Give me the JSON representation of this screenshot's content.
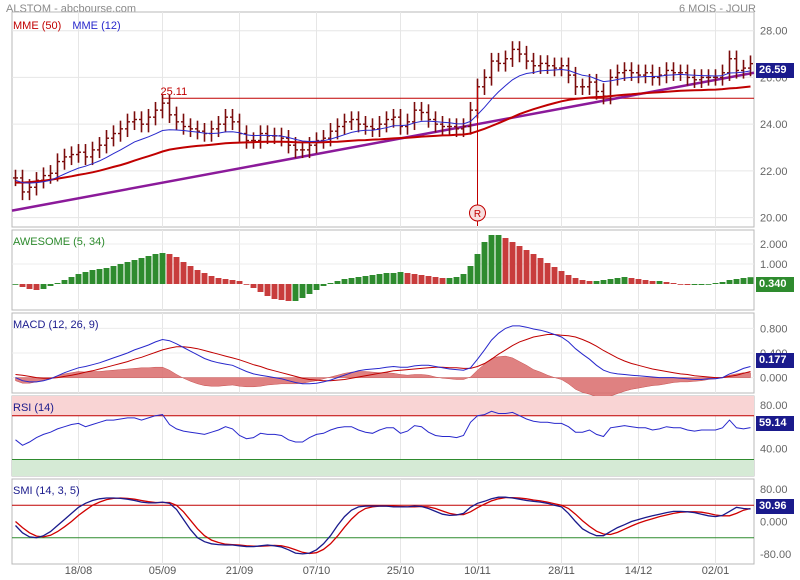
{
  "header": {
    "source": "ALSTOM - abcbourse.com",
    "period": "6 MOIS - JOUR"
  },
  "colors": {
    "price_bar": "#7a0b0b",
    "mme50": "#c00000",
    "mme12": "#2828cc",
    "trendline": "#8b1a9a",
    "resistance": "#c00000",
    "ao_up": "#2e8b2e",
    "ao_down": "#c83c3c",
    "rsi_over": "#f9d4d4",
    "rsi_under": "#d5ead5",
    "badge_blue": "#1a1a8c",
    "badge_green": "#2e8b2e"
  },
  "chart_data": [
    {
      "type": "ohlc",
      "panel": "price",
      "legend": [
        {
          "name": "MME (50)",
          "color": "#c00000"
        },
        {
          "name": "MME (12)",
          "color": "#2828cc"
        }
      ],
      "y_ticks": [
        "28.00",
        "26.00",
        "24.00",
        "22.00",
        "20.00"
      ],
      "ylim": [
        19.6,
        28.8
      ],
      "x_tick_labels": [
        "18/08",
        "05/09",
        "21/09",
        "07/10",
        "25/10",
        "10/11",
        "28/11",
        "14/12",
        "02/01"
      ],
      "x_tick_index": [
        9,
        21,
        32,
        43,
        55,
        66,
        78,
        89,
        100
      ],
      "last_value": "26.59",
      "resistance": {
        "label": "25.11",
        "value": 25.11
      },
      "marker": {
        "label": "R",
        "index": 66
      },
      "close": [
        21.7,
        21.1,
        21.3,
        21.6,
        21.8,
        21.9,
        22.4,
        22.6,
        22.7,
        22.8,
        22.6,
        22.9,
        23.1,
        23.4,
        23.6,
        23.8,
        24.1,
        24.2,
        24.0,
        24.3,
        24.6,
        24.9,
        24.4,
        24.1,
        23.9,
        23.8,
        23.7,
        23.6,
        23.8,
        24.0,
        24.3,
        24.1,
        23.6,
        23.3,
        23.3,
        23.6,
        23.5,
        23.5,
        23.4,
        23.1,
        22.9,
        22.9,
        23.1,
        23.3,
        23.4,
        23.7,
        23.9,
        24.1,
        24.2,
        24.0,
        23.9,
        23.8,
        24.0,
        24.2,
        24.3,
        23.9,
        24.1,
        24.6,
        24.5,
        24.2,
        24.0,
        23.9,
        23.9,
        23.8,
        23.9,
        24.6,
        25.6,
        26.0,
        26.7,
        26.6,
        26.8,
        27.2,
        27.0,
        26.7,
        26.5,
        26.6,
        26.5,
        26.4,
        26.5,
        26.1,
        25.6,
        25.6,
        25.8,
        25.4,
        25.2,
        26.0,
        26.2,
        26.3,
        26.2,
        26.1,
        26.2,
        26.0,
        26.1,
        26.3,
        26.2,
        26.2,
        26.0,
        25.9,
        26.0,
        26.0,
        26.0,
        26.2,
        26.8,
        26.3,
        26.4,
        26.59
      ],
      "ema50": [
        21.5,
        21.5,
        21.52,
        21.55,
        21.58,
        21.62,
        21.67,
        21.72,
        21.77,
        21.83,
        21.88,
        21.94,
        22.01,
        22.09,
        22.17,
        22.25,
        22.34,
        22.44,
        22.54,
        22.63,
        22.73,
        22.83,
        22.91,
        22.96,
        23.0,
        23.04,
        23.07,
        23.09,
        23.12,
        23.15,
        23.18,
        23.2,
        23.21,
        23.22,
        23.23,
        23.24,
        23.25,
        23.25,
        23.25,
        23.24,
        23.23,
        23.22,
        23.22,
        23.22,
        23.23,
        23.24,
        23.25,
        23.27,
        23.29,
        23.31,
        23.32,
        23.34,
        23.35,
        23.37,
        23.39,
        23.41,
        23.42,
        23.44,
        23.47,
        23.48,
        23.5,
        23.52,
        23.53,
        23.55,
        23.56,
        23.6,
        23.7,
        23.8,
        23.92,
        24.04,
        24.17,
        24.3,
        24.43,
        24.54,
        24.64,
        24.73,
        24.82,
        24.9,
        24.98,
        25.04,
        25.08,
        25.11,
        25.14,
        25.16,
        25.17,
        25.2,
        25.23,
        25.26,
        25.28,
        25.31,
        25.33,
        25.35,
        25.37,
        25.39,
        25.41,
        25.43,
        25.44,
        25.45,
        25.46,
        25.47,
        25.48,
        25.5,
        25.53,
        25.55,
        25.58,
        25.61
      ],
      "ema12": [
        21.6,
        21.5,
        21.48,
        21.5,
        21.54,
        21.6,
        21.73,
        21.87,
        22.0,
        22.12,
        22.2,
        22.31,
        22.43,
        22.58,
        22.74,
        22.9,
        23.07,
        23.24,
        23.35,
        23.46,
        23.59,
        23.73,
        23.76,
        23.75,
        23.73,
        23.69,
        23.66,
        23.62,
        23.6,
        23.62,
        23.67,
        23.68,
        23.63,
        23.54,
        23.51,
        23.52,
        23.52,
        23.51,
        23.49,
        23.43,
        23.35,
        23.28,
        23.26,
        23.27,
        23.29,
        23.36,
        23.45,
        23.55,
        23.65,
        23.71,
        23.74,
        23.74,
        23.79,
        23.85,
        23.93,
        23.94,
        23.96,
        24.06,
        24.12,
        24.13,
        24.11,
        24.08,
        24.06,
        24.02,
        24.01,
        24.12,
        24.41,
        24.72,
        25.07,
        25.38,
        25.65,
        25.9,
        26.07,
        26.17,
        26.21,
        26.28,
        26.3,
        26.32,
        26.34,
        26.3,
        26.19,
        26.09,
        26.05,
        25.93,
        25.82,
        25.85,
        25.91,
        25.97,
        26.0,
        26.02,
        26.04,
        26.04,
        26.05,
        26.09,
        26.11,
        26.13,
        26.11,
        26.09,
        26.08,
        26.07,
        26.06,
        26.08,
        26.19,
        26.2,
        26.23,
        26.28
      ]
    },
    {
      "type": "bar",
      "panel": "awesome",
      "label": "AWESOME (5, 34)",
      "y_ticks": [
        "2.000",
        "1.000"
      ],
      "ylim": [
        -1.3,
        2.7
      ],
      "last_value": "0.340",
      "values": [
        0.0,
        -0.15,
        -0.25,
        -0.3,
        -0.25,
        -0.1,
        0.05,
        0.2,
        0.35,
        0.5,
        0.6,
        0.7,
        0.75,
        0.8,
        0.9,
        1.0,
        1.1,
        1.2,
        1.3,
        1.4,
        1.5,
        1.55,
        1.5,
        1.35,
        1.1,
        0.9,
        0.7,
        0.55,
        0.4,
        0.3,
        0.25,
        0.2,
        0.15,
        0.0,
        -0.2,
        -0.4,
        -0.6,
        -0.75,
        -0.8,
        -0.85,
        -0.85,
        -0.7,
        -0.5,
        -0.3,
        -0.1,
        0.05,
        0.15,
        0.25,
        0.3,
        0.35,
        0.4,
        0.45,
        0.5,
        0.55,
        0.55,
        0.6,
        0.55,
        0.5,
        0.45,
        0.4,
        0.35,
        0.3,
        0.3,
        0.35,
        0.5,
        0.9,
        1.5,
        2.1,
        2.45,
        2.45,
        2.3,
        2.1,
        1.9,
        1.7,
        1.5,
        1.3,
        1.05,
        0.85,
        0.65,
        0.45,
        0.3,
        0.2,
        0.15,
        0.15,
        0.2,
        0.25,
        0.3,
        0.35,
        0.3,
        0.25,
        0.2,
        0.15,
        0.15,
        0.1,
        0.05,
        0.0,
        -0.05,
        -0.05,
        -0.05,
        0.0,
        0.05,
        0.1,
        0.2,
        0.25,
        0.3,
        0.34
      ]
    },
    {
      "type": "line",
      "panel": "macd",
      "label": "MACD (12, 26, 9)",
      "y_ticks": [
        "0.800",
        "0.400",
        "0.000"
      ],
      "ylim": [
        -0.25,
        1.05
      ],
      "last_value": "0.177",
      "macd": [
        0.0,
        -0.05,
        -0.07,
        -0.07,
        -0.05,
        -0.02,
        0.03,
        0.08,
        0.12,
        0.16,
        0.18,
        0.21,
        0.24,
        0.28,
        0.32,
        0.36,
        0.4,
        0.45,
        0.49,
        0.53,
        0.58,
        0.62,
        0.6,
        0.55,
        0.49,
        0.43,
        0.37,
        0.31,
        0.27,
        0.24,
        0.22,
        0.2,
        0.15,
        0.1,
        0.06,
        0.04,
        0.02,
        0.0,
        -0.02,
        -0.05,
        -0.08,
        -0.1,
        -0.1,
        -0.09,
        -0.07,
        -0.04,
        0.0,
        0.04,
        0.08,
        0.11,
        0.13,
        0.14,
        0.15,
        0.17,
        0.18,
        0.17,
        0.17,
        0.19,
        0.2,
        0.2,
        0.18,
        0.16,
        0.14,
        0.13,
        0.12,
        0.16,
        0.3,
        0.45,
        0.61,
        0.72,
        0.8,
        0.84,
        0.84,
        0.82,
        0.79,
        0.77,
        0.74,
        0.7,
        0.66,
        0.58,
        0.47,
        0.38,
        0.3,
        0.2,
        0.12,
        0.08,
        0.06,
        0.05,
        0.04,
        0.03,
        0.02,
        0.01,
        0.0,
        0.0,
        0.0,
        -0.01,
        -0.02,
        -0.03,
        -0.03,
        -0.02,
        -0.02,
        0.0,
        0.06,
        0.1,
        0.15,
        0.18
      ],
      "signal": [
        0.05,
        0.04,
        0.02,
        0.0,
        -0.01,
        -0.01,
        0.0,
        0.02,
        0.04,
        0.06,
        0.09,
        0.11,
        0.14,
        0.17,
        0.2,
        0.23,
        0.26,
        0.3,
        0.33,
        0.37,
        0.41,
        0.45,
        0.48,
        0.5,
        0.5,
        0.49,
        0.47,
        0.44,
        0.41,
        0.38,
        0.35,
        0.32,
        0.29,
        0.25,
        0.21,
        0.18,
        0.14,
        0.11,
        0.08,
        0.05,
        0.02,
        -0.01,
        -0.03,
        -0.04,
        -0.05,
        -0.05,
        -0.04,
        -0.03,
        -0.01,
        0.01,
        0.03,
        0.05,
        0.07,
        0.09,
        0.11,
        0.12,
        0.13,
        0.14,
        0.15,
        0.16,
        0.17,
        0.17,
        0.16,
        0.16,
        0.15,
        0.15,
        0.18,
        0.23,
        0.3,
        0.38,
        0.45,
        0.52,
        0.58,
        0.62,
        0.66,
        0.68,
        0.7,
        0.7,
        0.69,
        0.68,
        0.66,
        0.62,
        0.57,
        0.51,
        0.44,
        0.38,
        0.32,
        0.27,
        0.23,
        0.2,
        0.17,
        0.14,
        0.12,
        0.1,
        0.08,
        0.06,
        0.05,
        0.03,
        0.02,
        0.01,
        0.0,
        0.0,
        0.02,
        0.04,
        0.07,
        0.1
      ]
    },
    {
      "type": "line",
      "panel": "rsi",
      "label": "RSI (14)",
      "y_ticks": [
        "80.00",
        "40.00"
      ],
      "ylim": [
        15,
        88
      ],
      "bands": {
        "over": 70,
        "under": 30
      },
      "last_value": "59.14",
      "values": [
        48,
        43,
        46,
        50,
        53,
        55,
        58,
        60,
        62,
        63,
        60,
        62,
        64,
        66,
        66,
        67,
        68,
        68,
        66,
        68,
        70,
        71,
        62,
        58,
        56,
        55,
        54,
        53,
        55,
        57,
        60,
        58,
        52,
        49,
        50,
        54,
        53,
        53,
        52,
        48,
        46,
        46,
        50,
        53,
        54,
        57,
        59,
        60,
        60,
        57,
        55,
        54,
        57,
        59,
        59,
        54,
        56,
        61,
        60,
        55,
        52,
        51,
        51,
        50,
        52,
        64,
        70,
        71,
        74,
        72,
        72,
        73,
        70,
        67,
        65,
        64,
        64,
        63,
        63,
        60,
        55,
        55,
        57,
        53,
        51,
        59,
        60,
        61,
        60,
        59,
        59,
        57,
        58,
        60,
        59,
        59,
        57,
        56,
        57,
        57,
        57,
        59,
        66,
        59,
        58,
        59.14
      ]
    },
    {
      "type": "line",
      "panel": "smi",
      "label": "SMI (14, 3, 5)",
      "y_ticks": [
        "80.00",
        "0.000",
        "-80.00"
      ],
      "ylim": [
        -105,
        105
      ],
      "bands": {
        "upper": 40,
        "lower": -40
      },
      "last_value": "30.96",
      "smi": [
        -10,
        -28,
        -38,
        -40,
        -35,
        -25,
        -10,
        5,
        20,
        35,
        45,
        52,
        56,
        58,
        58,
        57,
        55,
        52,
        48,
        46,
        46,
        48,
        45,
        30,
        5,
        -20,
        -40,
        -50,
        -55,
        -57,
        -58,
        -58,
        -60,
        -62,
        -62,
        -60,
        -58,
        -60,
        -63,
        -70,
        -78,
        -80,
        -78,
        -70,
        -55,
        -35,
        -10,
        12,
        28,
        36,
        38,
        38,
        38,
        38,
        36,
        36,
        36,
        38,
        37,
        32,
        25,
        18,
        15,
        16,
        20,
        35,
        45,
        50,
        56,
        60,
        60,
        58,
        55,
        52,
        50,
        48,
        45,
        40,
        36,
        20,
        0,
        -18,
        -28,
        -35,
        -35,
        -25,
        -15,
        -8,
        0,
        5,
        10,
        14,
        18,
        22,
        25,
        25,
        24,
        22,
        18,
        14,
        12,
        15,
        25,
        35,
        32,
        30.96
      ],
      "signal": [
        0,
        -15,
        -28,
        -36,
        -38,
        -34,
        -25,
        -13,
        0,
        15,
        28,
        40,
        48,
        54,
        57,
        58,
        57,
        55,
        52,
        49,
        47,
        47,
        47,
        40,
        24,
        3,
        -18,
        -35,
        -46,
        -52,
        -56,
        -57,
        -58,
        -60,
        -61,
        -61,
        -60,
        -59,
        -60,
        -64,
        -70,
        -76,
        -79,
        -77,
        -69,
        -55,
        -36,
        -14,
        6,
        22,
        32,
        36,
        38,
        38,
        38,
        37,
        36,
        36,
        37,
        36,
        32,
        26,
        20,
        17,
        17,
        24,
        34,
        43,
        51,
        56,
        59,
        59,
        58,
        56,
        53,
        51,
        48,
        44,
        40,
        32,
        18,
        2,
        -12,
        -24,
        -31,
        -32,
        -27,
        -19,
        -11,
        -4,
        2,
        7,
        12,
        16,
        20,
        23,
        24,
        24,
        23,
        20,
        16,
        14,
        14,
        20,
        28,
        32
      ]
    }
  ]
}
